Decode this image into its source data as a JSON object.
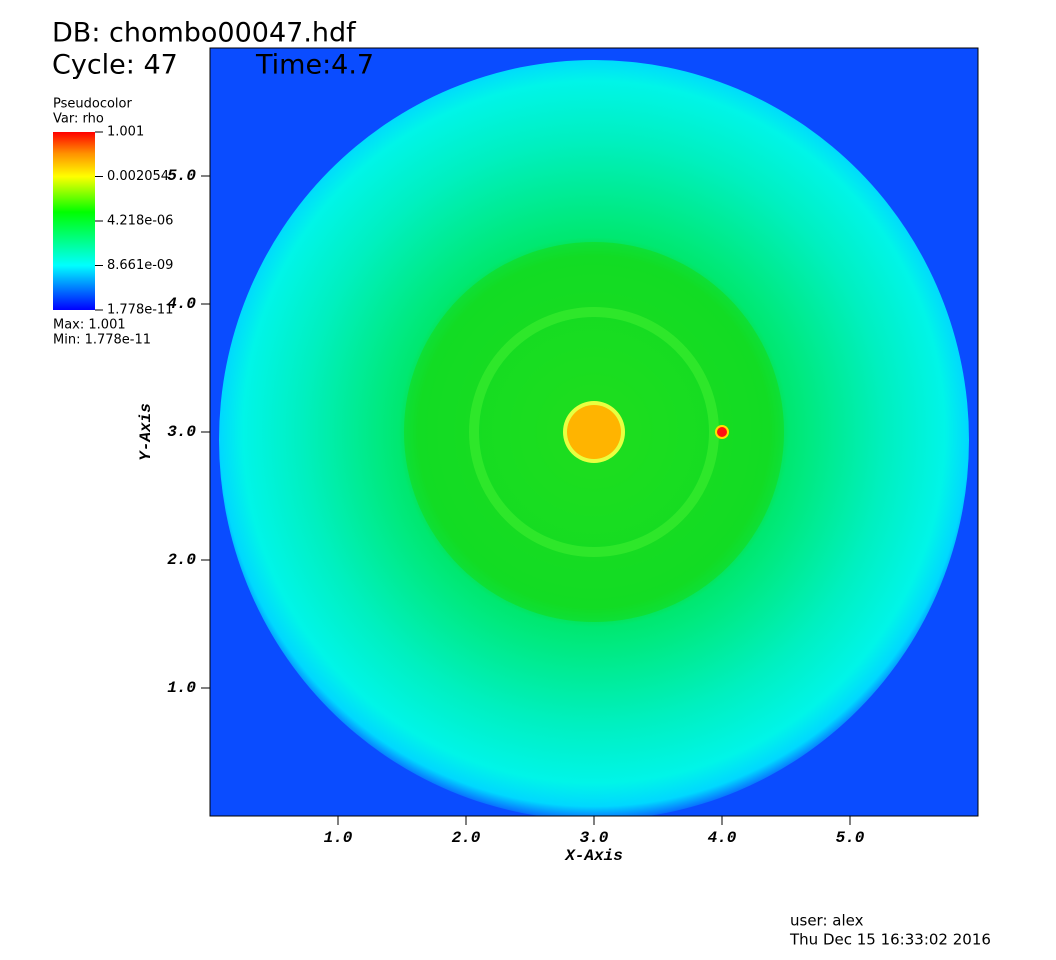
{
  "chart_data": {
    "type": "pseudocolor",
    "title": "DB: chombo00047.hdf",
    "cycle": "Cycle: 47",
    "time": "Time:4.7",
    "plot_name": "Pseudocolor",
    "variable": "Var: rho",
    "max_text": "Max:  1.001",
    "min_text": "Min:  1.778e-11",
    "xlabel": "X-Axis",
    "ylabel": "Y-Axis",
    "xlim": [
      0,
      6
    ],
    "ylim": [
      0,
      6
    ],
    "xticks": [
      {
        "value": 1,
        "label": "1.0"
      },
      {
        "value": 2,
        "label": "2.0"
      },
      {
        "value": 3,
        "label": "3.0"
      },
      {
        "value": 4,
        "label": "4.0"
      },
      {
        "value": 5,
        "label": "5.0"
      }
    ],
    "yticks": [
      {
        "value": 1,
        "label": "1.0"
      },
      {
        "value": 2,
        "label": "2.0"
      },
      {
        "value": 3,
        "label": "3.0"
      },
      {
        "value": 4,
        "label": "4.0"
      },
      {
        "value": 5,
        "label": "5.0"
      }
    ],
    "colorbar_lim": [
      1.778e-11,
      1.001
    ],
    "colorbar_log": true,
    "colorbar_ticks": [
      {
        "value": 1.001,
        "label": "1.001"
      },
      {
        "value": 0.002054,
        "label": "0.002054"
      },
      {
        "value": 4.218e-06,
        "label": "4.218e-06"
      },
      {
        "value": 8.661e-09,
        "label": "8.661e-09"
      },
      {
        "value": 1.778e-11,
        "label": "1.778e-11"
      }
    ],
    "user": "user: alex",
    "timestamp": "Thu Dec 15 16:33:02 2016"
  }
}
